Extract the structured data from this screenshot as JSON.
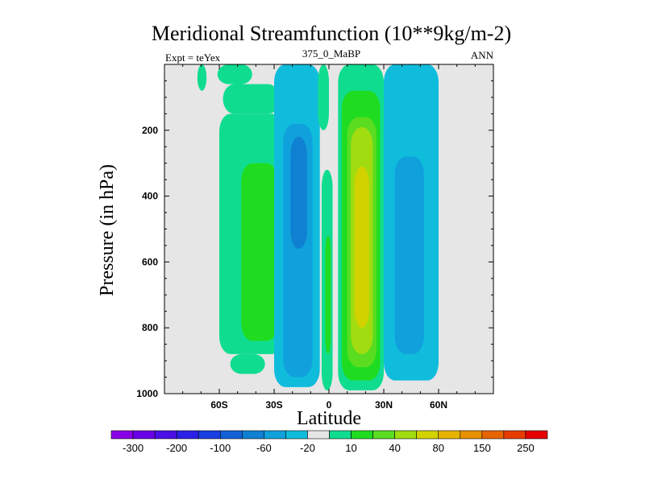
{
  "chart_data": {
    "type": "contour",
    "title": "Meridional Streamfunction (10**9kg/m-2)",
    "subtitle_left": "Expt = teYex",
    "subtitle_center": "375_0_MaBP",
    "subtitle_right": "ANN",
    "xlabel": "Latitude",
    "ylabel": "Pressure (in hPa)",
    "xlim": [
      -90,
      90
    ],
    "ylim": [
      1000,
      0
    ],
    "x_ticks": [
      -60,
      -30,
      0,
      30,
      60
    ],
    "x_tick_labels": [
      "60S",
      "30S",
      "0",
      "30N",
      "60N"
    ],
    "y_ticks": [
      200,
      400,
      600,
      800,
      1000
    ],
    "y_tick_labels": [
      "200",
      "400",
      "600",
      "800",
      "1000"
    ],
    "background_color": "#e6e6e6",
    "colorbar": {
      "colors": [
        "#8a00e6",
        "#6a00e6",
        "#4a10e6",
        "#2a20e6",
        "#1a40e0",
        "#1460d8",
        "#1080d2",
        "#10a0dc",
        "#10bcdc",
        "#e6e6e6",
        "#10dc90",
        "#20dc20",
        "#5adc20",
        "#a0dc10",
        "#d2d200",
        "#e6b400",
        "#e69000",
        "#e66400",
        "#e63c00",
        "#e60000"
      ],
      "labels": [
        "-300",
        "-200",
        "-100",
        "-60",
        "-20",
        "10",
        "40",
        "80",
        "150",
        "250"
      ]
    },
    "contour_cells": [
      {
        "lat": [
          -72,
          -67
        ],
        "p": [
          0,
          80
        ],
        "color": "#10dc90"
      },
      {
        "lat": [
          -61,
          -42
        ],
        "p": [
          0,
          60
        ],
        "color": "#10dc90"
      },
      {
        "lat": [
          -58,
          -27
        ],
        "p": [
          60,
          150
        ],
        "color": "#10dc90"
      },
      {
        "lat": [
          -60,
          -25
        ],
        "p": [
          150,
          880
        ],
        "color": "#10dc90"
      },
      {
        "lat": [
          -54,
          -35
        ],
        "p": [
          880,
          940
        ],
        "color": "#10dc90"
      },
      {
        "lat": [
          -48,
          -28
        ],
        "p": [
          300,
          840
        ],
        "color": "#20dc20"
      },
      {
        "lat": [
          -30,
          -5
        ],
        "p": [
          0,
          980
        ],
        "color": "#10bcdc"
      },
      {
        "lat": [
          -25,
          -9
        ],
        "p": [
          180,
          950
        ],
        "color": "#10a0dc"
      },
      {
        "lat": [
          -21,
          -12
        ],
        "p": [
          220,
          560
        ],
        "color": "#1080d2"
      },
      {
        "lat": [
          -6,
          0
        ],
        "p": [
          0,
          200
        ],
        "color": "#10dc90"
      },
      {
        "lat": [
          -4,
          2
        ],
        "p": [
          320,
          990
        ],
        "color": "#10dc90"
      },
      {
        "lat": [
          -2,
          1
        ],
        "p": [
          520,
          880
        ],
        "color": "#20dc20"
      },
      {
        "lat": [
          5,
          30
        ],
        "p": [
          0,
          990
        ],
        "color": "#10dc90"
      },
      {
        "lat": [
          7,
          28
        ],
        "p": [
          80,
          960
        ],
        "color": "#20dc20"
      },
      {
        "lat": [
          10,
          26
        ],
        "p": [
          160,
          920
        ],
        "color": "#5adc20"
      },
      {
        "lat": [
          12,
          24
        ],
        "p": [
          190,
          880
        ],
        "color": "#a0dc10"
      },
      {
        "lat": [
          14,
          22
        ],
        "p": [
          310,
          800
        ],
        "color": "#d2d200"
      },
      {
        "lat": [
          30,
          60
        ],
        "p": [
          0,
          960
        ],
        "color": "#10bcdc"
      },
      {
        "lat": [
          36,
          52
        ],
        "p": [
          280,
          880
        ],
        "color": "#10a0dc"
      }
    ]
  }
}
